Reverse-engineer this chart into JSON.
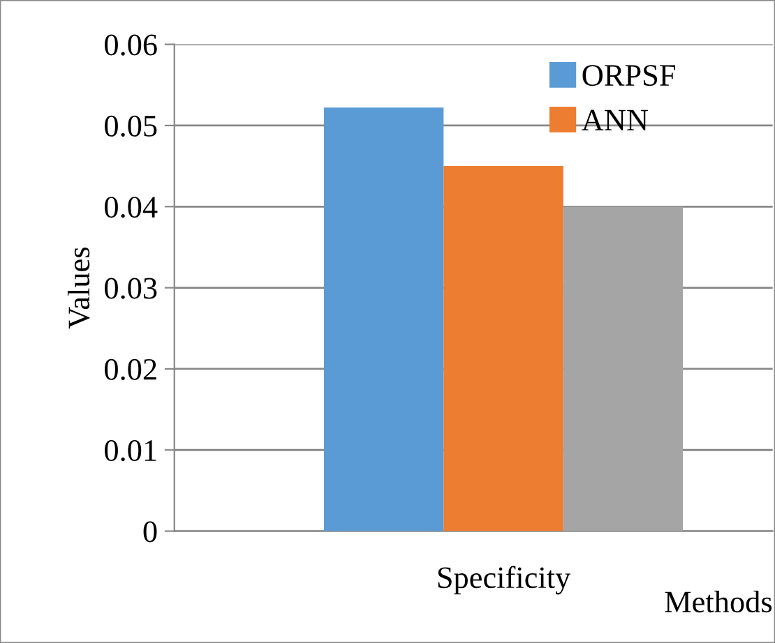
{
  "chart_data": {
    "type": "bar",
    "categories": [
      "Specificity"
    ],
    "xlabel": "Methods",
    "ylabel": "Values",
    "series": [
      {
        "name": "ORPSF",
        "color": "#5b9bd5",
        "values": [
          0.0522
        ]
      },
      {
        "name": "ANN",
        "color": "#ed7d31",
        "values": [
          0.045
        ]
      },
      {
        "color": "#a5a5a5",
        "values": [
          0.04
        ]
      }
    ],
    "ylim": [
      0,
      0.06
    ],
    "yticks": [
      {
        "value": 0,
        "label": "0"
      },
      0.01,
      0.02,
      0.03,
      0.04,
      0.05,
      0.06
    ],
    "grid": "y",
    "legend": "top right"
  }
}
